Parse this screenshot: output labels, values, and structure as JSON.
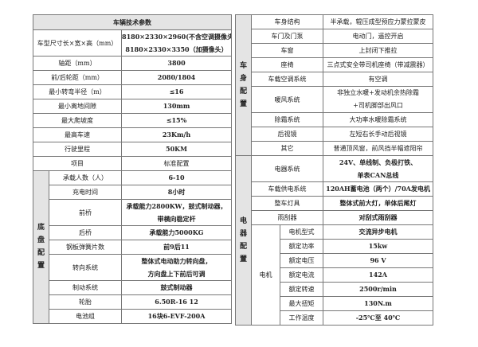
{
  "left_table": {
    "title": "车辆技术参数",
    "specs": [
      {
        "label": "车型尺寸长×宽×高（mm）",
        "value": [
          "8180×2330×2960(不含空调摄像头)",
          "8180×2330×3350（加摄像头）"
        ]
      },
      {
        "label": "轴距（mm）",
        "value": [
          "3800"
        ]
      },
      {
        "label": "前/后轮距（mm）",
        "value": [
          "2080/1804"
        ]
      },
      {
        "label": "最小转弯半径（m）",
        "value": [
          "≤16"
        ]
      },
      {
        "label": "最小离地间隙",
        "value": [
          "130mm"
        ]
      },
      {
        "label": "最大爬坡度",
        "value": [
          "≤15%"
        ]
      },
      {
        "label": "最高车速",
        "value": [
          "23Km/h"
        ]
      },
      {
        "label": "行驶里程",
        "value": [
          "50KM"
        ]
      }
    ],
    "config_header": {
      "item": "项目",
      "standard": "标准配置"
    },
    "chassis_section": "底盘配置",
    "chassis": [
      {
        "label": "承载人数（人）",
        "value": [
          "6-10"
        ]
      },
      {
        "label": "充电时间",
        "value": [
          "8小时"
        ]
      },
      {
        "label": "前桥",
        "value": [
          "承载能力2800KW，鼓式制动器，",
          "带横向稳定杆"
        ]
      },
      {
        "label": "后桥",
        "value": [
          "承载能力5000KG"
        ]
      },
      {
        "label": "钢板弹簧片数",
        "value": [
          "前9后11"
        ]
      },
      {
        "label": "转向系统",
        "value": [
          "整体式电动助力转向盘，",
          "方向盘上下前后可调"
        ]
      },
      {
        "label": "制动系统",
        "value": [
          "鼓式制动器"
        ]
      },
      {
        "label": "轮胎",
        "value": [
          "6.50R-16 12"
        ]
      },
      {
        "label": "电池组",
        "value": [
          "16块6-EVF-200A"
        ]
      }
    ]
  },
  "right_table": {
    "body_section": "车身配置",
    "body": [
      {
        "label": "车身结构",
        "value": [
          "半承载，辊压成型预应力蒙拉蒙皮"
        ]
      },
      {
        "label": "车门及门泵",
        "value": [
          "电动门，遥控开启"
        ]
      },
      {
        "label": "车窗",
        "value": [
          "上封闭下推拉"
        ]
      },
      {
        "label": "座椅",
        "value": [
          "三点式安全带司机座椅（带减震器）"
        ]
      },
      {
        "label": "车载空调系统",
        "value": [
          "有空调"
        ]
      },
      {
        "label": "暖风系统",
        "value": [
          "非独立水暖+发动机余热除霜",
          "+司机脚部出风口"
        ]
      },
      {
        "label": "除霜系统",
        "value": [
          "大功率水暖除霜系统"
        ]
      },
      {
        "label": "后视镜",
        "value": [
          "左短右长手动后视镜"
        ]
      },
      {
        "label": "其它",
        "value": [
          "普通顶风窗，前风挡半幅遮阳帘"
        ]
      }
    ],
    "electrical_section": "电器配置",
    "electrical": [
      {
        "label": "电器系统",
        "value": [
          "24V、单线制、负极打铁、",
          "单表CAN总线"
        ]
      },
      {
        "label": "车载供电系统",
        "value": [
          "120AH蓄电池（两个）/70A发电机"
        ]
      },
      {
        "label": "整车灯具",
        "value": [
          "整体式前大灯，单体后尾灯"
        ]
      },
      {
        "label": "雨刮器",
        "value": [
          "对刮式雨刮器"
        ]
      }
    ],
    "motor_label": "电机",
    "motor": [
      {
        "label": "电机型式",
        "value": "交流异步电机"
      },
      {
        "label": "额定功率",
        "value": "15kw"
      },
      {
        "label": "额定电压",
        "value": "96 V"
      },
      {
        "label": "额定电流",
        "value": "142A"
      },
      {
        "label": "额定转速",
        "value": "2500r/min"
      },
      {
        "label": "最大扭矩",
        "value": "130N.m"
      },
      {
        "label": "工作温度",
        "value": "-25℃至 40℃"
      }
    ]
  }
}
